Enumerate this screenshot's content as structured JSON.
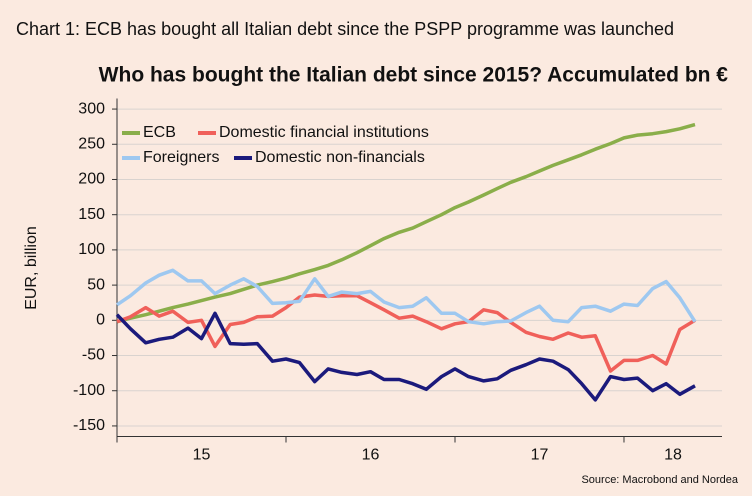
{
  "chart_data": {
    "type": "line",
    "title": "Chart 1: ECB has bought all Italian debt since the PSPP programme was launched",
    "subtitle": "Who has bought the Italian debt since 2015? Accumulated bn €",
    "y_label": "EUR, billion",
    "source": "Source: Macrobond and Nordea",
    "x": [
      2015,
      2015.08,
      2015.17,
      2015.25,
      2015.33,
      2015.42,
      2015.5,
      2015.58,
      2015.67,
      2015.75,
      2015.83,
      2015.92,
      2016,
      2016.08,
      2016.17,
      2016.25,
      2016.33,
      2016.42,
      2016.5,
      2016.58,
      2016.67,
      2016.75,
      2016.83,
      2016.92,
      2017,
      2017.08,
      2017.17,
      2017.25,
      2017.33,
      2017.42,
      2017.5,
      2017.58,
      2017.67,
      2017.75,
      2017.83,
      2017.92,
      2018,
      2018.08,
      2018.17,
      2018.25,
      2018.33,
      2018.42
    ],
    "series": [
      {
        "name": "ECB",
        "color": "#8aae4a",
        "values": [
          -2,
          3,
          8,
          13,
          18,
          23,
          28,
          33,
          38,
          44,
          50,
          55,
          60,
          66,
          72,
          78,
          86,
          96,
          106,
          116,
          125,
          131,
          140,
          150,
          160,
          168,
          178,
          187,
          196,
          204,
          212,
          220,
          228,
          235,
          243,
          251,
          259,
          263,
          265,
          268,
          272,
          278
        ]
      },
      {
        "name": "Domestic financial institutions",
        "color": "#f0605a",
        "values": [
          -2,
          5,
          18,
          6,
          13,
          -3,
          0,
          -37,
          -6,
          -3,
          5,
          6,
          18,
          33,
          36,
          34,
          35,
          35,
          25,
          15,
          3,
          6,
          -2,
          -12,
          -5,
          -2,
          15,
          11,
          -3,
          -17,
          -23,
          -27,
          -18,
          -24,
          -22,
          -72,
          -57,
          -57,
          -50,
          -62,
          -13,
          0
        ]
      },
      {
        "name": "Foreigners",
        "color": "#9ec8f0",
        "values": [
          22,
          35,
          53,
          64,
          71,
          56,
          56,
          38,
          50,
          59,
          48,
          24,
          25,
          27,
          59,
          34,
          40,
          38,
          41,
          26,
          18,
          20,
          32,
          10,
          10,
          -2,
          -5,
          -2,
          -1,
          11,
          20,
          0,
          -2,
          18,
          20,
          13,
          23,
          21,
          45,
          55,
          32,
          -2
        ]
      },
      {
        "name": "Domestic non-financials",
        "color": "#1b1a7c",
        "values": [
          8,
          -12,
          -32,
          -27,
          -24,
          -11,
          -26,
          10,
          -33,
          -34,
          -33,
          -58,
          -55,
          -60,
          -87,
          -69,
          -74,
          -77,
          -73,
          -84,
          -84,
          -90,
          -98,
          -80,
          -69,
          -80,
          -86,
          -83,
          -71,
          -63,
          -55,
          -58,
          -70,
          -90,
          -113,
          -80,
          -84,
          -82,
          -100,
          -90,
          -105,
          -93
        ]
      }
    ],
    "xlim": [
      2015,
      2018.58
    ],
    "xtick_marks": [
      2015,
      2016,
      2017,
      2018
    ],
    "xticks": [
      {
        "value": 2015.5,
        "label": "15"
      },
      {
        "value": 2016.5,
        "label": "16"
      },
      {
        "value": 2017.5,
        "label": "17"
      },
      {
        "value": 2018.29,
        "label": "18"
      }
    ],
    "ylim": [
      -165,
      315
    ],
    "yticks": [
      300,
      250,
      200,
      150,
      100,
      50,
      0,
      -50,
      -100,
      -150
    ],
    "grid": true,
    "legend": "upper left"
  }
}
